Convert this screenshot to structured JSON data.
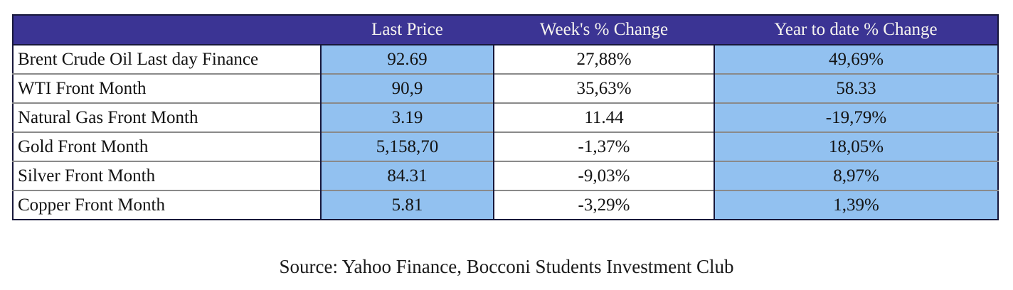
{
  "chart_data": {
    "type": "table",
    "title": "",
    "columns": [
      "",
      "Last Price",
      "Week's % Change",
      "Year to date % Change"
    ],
    "rows": [
      [
        "Brent Crude Oil Last day Finance",
        "92.69",
        "27,88%",
        "49,69%"
      ],
      [
        "WTI Front Month",
        "90,9",
        "35,63%",
        "58.33"
      ],
      [
        "Natural Gas Front Month",
        "3.19",
        "11.44",
        "-19,79%"
      ],
      [
        "Gold Front Month",
        "5,158,70",
        "-1,37%",
        "18,05%"
      ],
      [
        "Silver Front Month",
        "84.31",
        "-9,03%",
        "8,97%"
      ],
      [
        "Copper Front Month",
        "5.81",
        "-3,29%",
        "1,39%"
      ]
    ],
    "source": "Source: Yahoo Finance, Bocconi Students Investment Club",
    "layout": {
      "header_position": "top",
      "shaded_columns": [
        "Last Price",
        "Year to date % Change"
      ]
    }
  },
  "colors": {
    "header_bg": "#3b3494",
    "header_text": "#f5f3ef",
    "shaded_cell_bg": "#92c1f0",
    "outer_border": "#17173a",
    "row_divider": "#8a8a8a"
  }
}
